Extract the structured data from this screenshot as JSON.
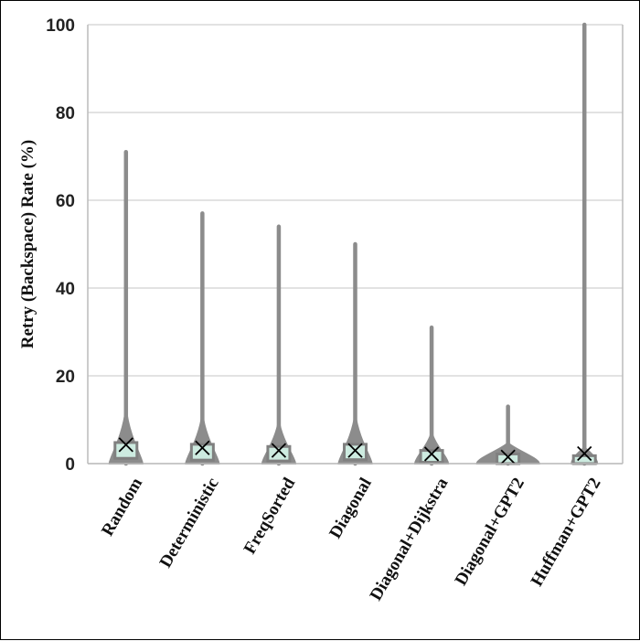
{
  "chart_data": {
    "type": "violin",
    "title": "",
    "xlabel": "",
    "ylabel": "Retry (Backspace) Rate (%)",
    "ylim": [
      0,
      100
    ],
    "yticks": [
      0,
      20,
      40,
      60,
      80,
      100
    ],
    "grid": true,
    "colors": {
      "violin": "#8c8c8c",
      "box_fill": "#cdebe0",
      "mean_marker": "#000000",
      "grid": "#d0d0d0"
    },
    "categories": [
      "Random",
      "Deterministic",
      "FreqSorted",
      "Diagonal",
      "Diagonal+Dijkstra",
      "Diagonal+GPT2",
      "Huffman+GPT2"
    ],
    "series": [
      {
        "category": "Random",
        "min": 0,
        "q1": 1.8,
        "median": 3.2,
        "q3": 4.2,
        "max": 71,
        "mean": 4.3
      },
      {
        "category": "Deterministic",
        "min": 0,
        "q1": 1.4,
        "median": 2.5,
        "q3": 3.8,
        "max": 57,
        "mean": 3.6
      },
      {
        "category": "FreqSorted",
        "min": 0,
        "q1": 1.2,
        "median": 2.2,
        "q3": 3.3,
        "max": 54,
        "mean": 3.0
      },
      {
        "category": "Diagonal",
        "min": 0,
        "q1": 1.5,
        "median": 2.6,
        "q3": 3.8,
        "max": 50,
        "mean": 3.0
      },
      {
        "category": "Diagonal+Dijkstra",
        "min": 0,
        "q1": 0.9,
        "median": 1.6,
        "q3": 2.4,
        "max": 31,
        "mean": 2.2
      },
      {
        "category": "Diagonal+GPT2",
        "min": 0,
        "q1": 0.5,
        "median": 1.0,
        "q3": 1.6,
        "max": 13,
        "mean": 1.5
      },
      {
        "category": "Huffman+GPT2",
        "min": 0,
        "q1": 0.0,
        "median": 0.5,
        "q3": 1.2,
        "max": 100,
        "mean": 2.3
      }
    ]
  }
}
